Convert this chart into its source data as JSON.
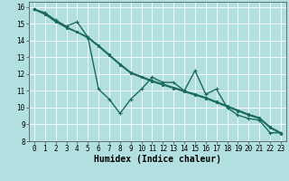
{
  "xlabel": "Humidex (Indice chaleur)",
  "background_color": "#b2e0e0",
  "grid_color": "#ffffff",
  "line_color": "#1a6b5a",
  "xlim": [
    -0.5,
    23.5
  ],
  "ylim": [
    8,
    16.3
  ],
  "xticks": [
    0,
    1,
    2,
    3,
    4,
    5,
    6,
    7,
    8,
    9,
    10,
    11,
    12,
    13,
    14,
    15,
    16,
    17,
    18,
    19,
    20,
    21,
    22,
    23
  ],
  "yticks": [
    8,
    9,
    10,
    11,
    12,
    13,
    14,
    15,
    16
  ],
  "line1_x": [
    0,
    1,
    2,
    3,
    4,
    5,
    6,
    7,
    8,
    9,
    10,
    11,
    12,
    13,
    14,
    15,
    16,
    17,
    18,
    19,
    20,
    21,
    22,
    23
  ],
  "line1_y": [
    15.85,
    15.65,
    15.2,
    14.85,
    15.1,
    14.2,
    11.1,
    10.5,
    9.65,
    10.5,
    11.1,
    11.8,
    11.5,
    11.5,
    11.0,
    12.2,
    10.8,
    11.1,
    10.0,
    9.55,
    9.35,
    9.25,
    8.5,
    8.5
  ],
  "line2_x": [
    0,
    1,
    2,
    3,
    4,
    5,
    6,
    7,
    8,
    9,
    10,
    11,
    12,
    13,
    14,
    15,
    16,
    17,
    18,
    19,
    20,
    21,
    22,
    23
  ],
  "line2_y": [
    15.85,
    15.55,
    15.15,
    14.75,
    14.5,
    14.2,
    13.7,
    13.15,
    12.6,
    12.1,
    11.85,
    11.6,
    11.4,
    11.2,
    11.0,
    10.8,
    10.6,
    10.35,
    10.1,
    9.85,
    9.6,
    9.4,
    8.85,
    8.5
  ],
  "line3_x": [
    0,
    1,
    2,
    3,
    4,
    5,
    6,
    7,
    8,
    9,
    10,
    11,
    12,
    13,
    14,
    15,
    16,
    17,
    18,
    19,
    20,
    21,
    22,
    23
  ],
  "line3_y": [
    15.85,
    15.6,
    15.1,
    14.8,
    14.5,
    14.15,
    13.65,
    13.1,
    12.55,
    12.05,
    11.8,
    11.55,
    11.35,
    11.15,
    10.95,
    10.75,
    10.55,
    10.3,
    10.05,
    9.8,
    9.55,
    9.35,
    8.8,
    8.45
  ],
  "xlabel_fontsize": 7,
  "tick_fontsize": 5.5,
  "linewidth": 1.0,
  "marker_size": 3,
  "marker_ew": 0.8
}
